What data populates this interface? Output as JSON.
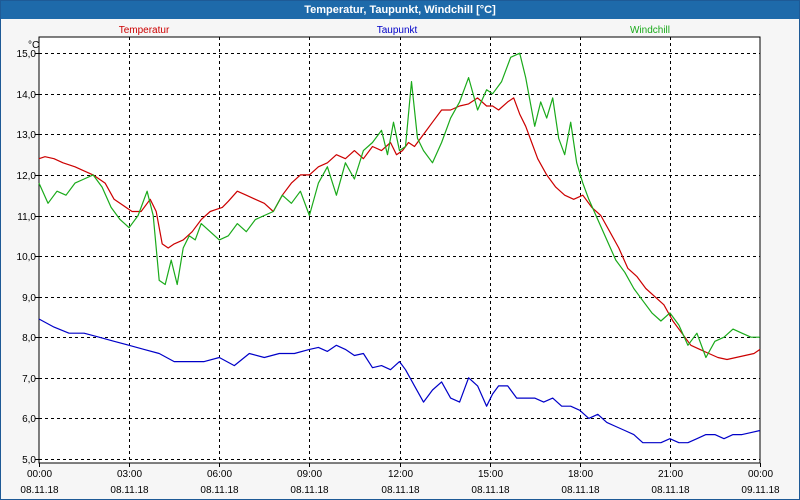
{
  "window": {
    "title": "Temperatur, Taupunkt, Windchill [°C]"
  },
  "colors": {
    "plot_bg": "#ffffff",
    "grid": "#000000",
    "temperatur": "#cc0000",
    "taupunkt": "#0000c8",
    "windchill": "#1aaa1a"
  },
  "chart_data": {
    "type": "line",
    "title": "Temperatur, Taupunkt, Windchill [°C]",
    "ylabel": "°C",
    "xlabel": "",
    "ylim": [
      4.9,
      15.4
    ],
    "xlim": [
      0,
      24
    ],
    "grid": true,
    "legend": "top, inline above plot",
    "y_ticks": [
      "5,0",
      "6,0",
      "7,0",
      "8,0",
      "9,0",
      "10,0",
      "11,0",
      "12,0",
      "13,0",
      "14,0",
      "15,0"
    ],
    "x_ticks": [
      {
        "time": "00:00",
        "date": "08.11.18"
      },
      {
        "time": "03:00",
        "date": "08.11.18"
      },
      {
        "time": "06:00",
        "date": "08.11.18"
      },
      {
        "time": "09:00",
        "date": "08.11.18"
      },
      {
        "time": "12:00",
        "date": "08.11.18"
      },
      {
        "time": "15:00",
        "date": "08.11.18"
      },
      {
        "time": "18:00",
        "date": "08.11.18"
      },
      {
        "time": "21:00",
        "date": "08.11.18"
      },
      {
        "time": "00:00",
        "date": "09.11.18"
      }
    ],
    "series": [
      {
        "name": "Temperatur",
        "x": [
          0,
          0.2,
          0.5,
          0.8,
          1.2,
          1.5,
          1.8,
          2.2,
          2.5,
          2.8,
          3.1,
          3.4,
          3.7,
          3.9,
          4.1,
          4.3,
          4.5,
          4.8,
          5.1,
          5.4,
          5.7,
          5.9,
          6.1,
          6.3,
          6.6,
          6.9,
          7.2,
          7.5,
          7.8,
          8.1,
          8.4,
          8.7,
          9.0,
          9.3,
          9.6,
          9.9,
          10.2,
          10.5,
          10.8,
          11.1,
          11.4,
          11.7,
          11.9,
          12.1,
          12.3,
          12.5,
          12.8,
          13.1,
          13.4,
          13.7,
          14.0,
          14.3,
          14.6,
          14.9,
          15.1,
          15.3,
          15.6,
          15.8,
          16.0,
          16.2,
          16.4,
          16.6,
          16.9,
          17.2,
          17.5,
          17.8,
          18.1,
          18.4,
          18.7,
          19.0,
          19.3,
          19.6,
          19.9,
          20.2,
          20.5,
          20.8,
          21.1,
          21.4,
          21.7,
          22.0,
          22.3,
          22.6,
          22.9,
          23.2,
          23.5,
          23.8,
          24.0
        ],
        "values": [
          12.4,
          12.45,
          12.4,
          12.3,
          12.2,
          12.1,
          12.0,
          11.8,
          11.4,
          11.25,
          11.1,
          11.1,
          11.4,
          11.1,
          10.3,
          10.2,
          10.3,
          10.4,
          10.6,
          10.9,
          11.1,
          11.15,
          11.2,
          11.35,
          11.6,
          11.5,
          11.4,
          11.3,
          11.1,
          11.5,
          11.8,
          12.0,
          12.0,
          12.2,
          12.3,
          12.5,
          12.4,
          12.6,
          12.4,
          12.7,
          12.6,
          12.8,
          12.5,
          12.6,
          12.8,
          12.7,
          13.0,
          13.3,
          13.6,
          13.6,
          13.7,
          13.75,
          13.9,
          13.7,
          13.7,
          13.6,
          13.8,
          13.9,
          13.5,
          13.2,
          12.8,
          12.4,
          12.0,
          11.7,
          11.5,
          11.4,
          11.5,
          11.2,
          11.0,
          10.6,
          10.2,
          9.7,
          9.5,
          9.2,
          9.0,
          8.8,
          8.4,
          8.1,
          7.8,
          7.7,
          7.6,
          7.5,
          7.45,
          7.5,
          7.55,
          7.6,
          7.7
        ]
      },
      {
        "name": "Taupunkt",
        "x": [
          0,
          0.5,
          1.0,
          1.5,
          2.0,
          2.5,
          3.0,
          3.5,
          4.0,
          4.5,
          5.0,
          5.5,
          6.0,
          6.5,
          7.0,
          7.5,
          8.0,
          8.5,
          9.0,
          9.3,
          9.6,
          9.9,
          10.2,
          10.5,
          10.8,
          11.1,
          11.4,
          11.7,
          12.0,
          12.2,
          12.5,
          12.8,
          13.1,
          13.4,
          13.7,
          14.0,
          14.3,
          14.6,
          14.9,
          15.1,
          15.3,
          15.6,
          15.9,
          16.2,
          16.5,
          16.8,
          17.1,
          17.4,
          17.7,
          18.0,
          18.3,
          18.6,
          18.9,
          19.2,
          19.5,
          19.8,
          20.1,
          20.4,
          20.7,
          21.0,
          21.3,
          21.6,
          21.9,
          22.2,
          22.5,
          22.8,
          23.1,
          23.4,
          23.7,
          24.0
        ],
        "values": [
          8.45,
          8.25,
          8.1,
          8.1,
          8.0,
          7.9,
          7.8,
          7.7,
          7.6,
          7.4,
          7.4,
          7.4,
          7.5,
          7.3,
          7.6,
          7.5,
          7.6,
          7.6,
          7.7,
          7.75,
          7.65,
          7.8,
          7.7,
          7.55,
          7.6,
          7.25,
          7.3,
          7.2,
          7.4,
          7.2,
          6.8,
          6.4,
          6.7,
          6.9,
          6.5,
          6.4,
          7.0,
          6.8,
          6.3,
          6.6,
          6.8,
          6.8,
          6.5,
          6.5,
          6.5,
          6.4,
          6.5,
          6.3,
          6.3,
          6.2,
          6.0,
          6.1,
          5.9,
          5.8,
          5.7,
          5.6,
          5.4,
          5.4,
          5.4,
          5.5,
          5.4,
          5.4,
          5.5,
          5.6,
          5.6,
          5.5,
          5.6,
          5.6,
          5.65,
          5.7
        ]
      },
      {
        "name": "Windchill",
        "x": [
          0,
          0.3,
          0.6,
          0.9,
          1.2,
          1.5,
          1.8,
          2.1,
          2.4,
          2.7,
          3.0,
          3.3,
          3.6,
          3.8,
          4.0,
          4.2,
          4.4,
          4.6,
          4.8,
          5.0,
          5.2,
          5.4,
          5.7,
          6.0,
          6.3,
          6.6,
          6.9,
          7.2,
          7.5,
          7.8,
          8.1,
          8.4,
          8.7,
          9.0,
          9.3,
          9.6,
          9.9,
          10.2,
          10.5,
          10.8,
          11.1,
          11.4,
          11.6,
          11.8,
          12.0,
          12.2,
          12.4,
          12.6,
          12.8,
          13.1,
          13.4,
          13.7,
          14.0,
          14.3,
          14.6,
          14.9,
          15.1,
          15.4,
          15.7,
          16.0,
          16.2,
          16.5,
          16.7,
          16.9,
          17.1,
          17.3,
          17.5,
          17.7,
          17.9,
          18.1,
          18.3,
          18.6,
          18.9,
          19.2,
          19.5,
          19.8,
          20.1,
          20.4,
          20.7,
          21.0,
          21.3,
          21.6,
          21.9,
          22.2,
          22.5,
          22.8,
          23.1,
          23.4,
          23.7,
          24.0
        ],
        "values": [
          11.8,
          11.3,
          11.6,
          11.5,
          11.8,
          11.9,
          12.0,
          11.7,
          11.2,
          10.9,
          10.7,
          11.0,
          11.6,
          11.0,
          9.4,
          9.3,
          9.9,
          9.3,
          10.2,
          10.5,
          10.4,
          10.8,
          10.6,
          10.4,
          10.5,
          10.8,
          10.6,
          10.9,
          11.0,
          11.1,
          11.5,
          11.3,
          11.6,
          11.0,
          11.8,
          12.2,
          11.5,
          12.3,
          11.9,
          12.6,
          12.8,
          13.1,
          12.5,
          13.3,
          12.6,
          12.7,
          14.3,
          12.9,
          12.6,
          12.3,
          12.8,
          13.4,
          13.8,
          14.4,
          13.6,
          14.1,
          14.0,
          14.3,
          14.9,
          15.0,
          14.4,
          13.2,
          13.8,
          13.4,
          13.9,
          12.9,
          12.5,
          13.3,
          12.3,
          11.8,
          11.4,
          10.9,
          10.4,
          9.9,
          9.6,
          9.2,
          8.9,
          8.6,
          8.4,
          8.6,
          8.3,
          7.8,
          8.1,
          7.5,
          7.9,
          8.0,
          8.2,
          8.1,
          8.0,
          8.0
        ]
      }
    ]
  }
}
